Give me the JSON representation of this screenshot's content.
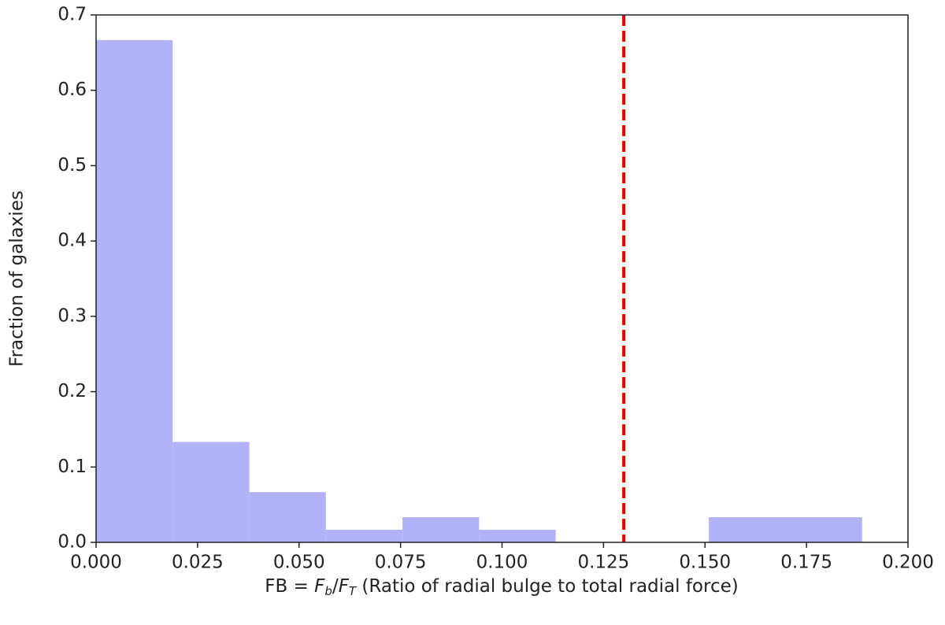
{
  "chart_data": {
    "type": "histogram",
    "xlabel": [
      "FB = ",
      "F",
      "b",
      "/",
      "F",
      "T",
      " (Ratio of radial bulge to total radial force)"
    ],
    "ylabel": "Fraction of galaxies",
    "bins": [
      0,
      0.01887,
      0.03774,
      0.05661,
      0.07548,
      0.09435,
      0.11322,
      0.13209,
      0.15096,
      0.16983,
      0.1887
    ],
    "values": [
      0.6667,
      0.1333,
      0.0667,
      0.0167,
      0.0333,
      0.0167,
      0,
      0,
      0.0333,
      0.0333
    ],
    "color": "#b2b2f9",
    "vline": {
      "x": 0.13,
      "color": "#ee0000"
    },
    "xlim": [
      0,
      0.2
    ],
    "xticks": [
      {
        "value": 0,
        "label": "0.000"
      },
      {
        "value": 0.025,
        "label": "0.025"
      },
      {
        "value": 0.05,
        "label": "0.050"
      },
      {
        "value": 0.075,
        "label": "0.075"
      },
      {
        "value": 0.1,
        "label": "0.100"
      },
      {
        "value": 0.125,
        "label": "0.125"
      },
      {
        "value": 0.15,
        "label": "0.150"
      },
      {
        "value": 0.175,
        "label": "0.175"
      },
      {
        "value": 0.2,
        "label": "0.200"
      }
    ],
    "ylim": [
      0,
      0.7
    ],
    "yticks": [
      {
        "value": 0,
        "label": "0.0"
      },
      0.1,
      0.2,
      0.3,
      0.4,
      0.5,
      0.6,
      0.7
    ]
  }
}
